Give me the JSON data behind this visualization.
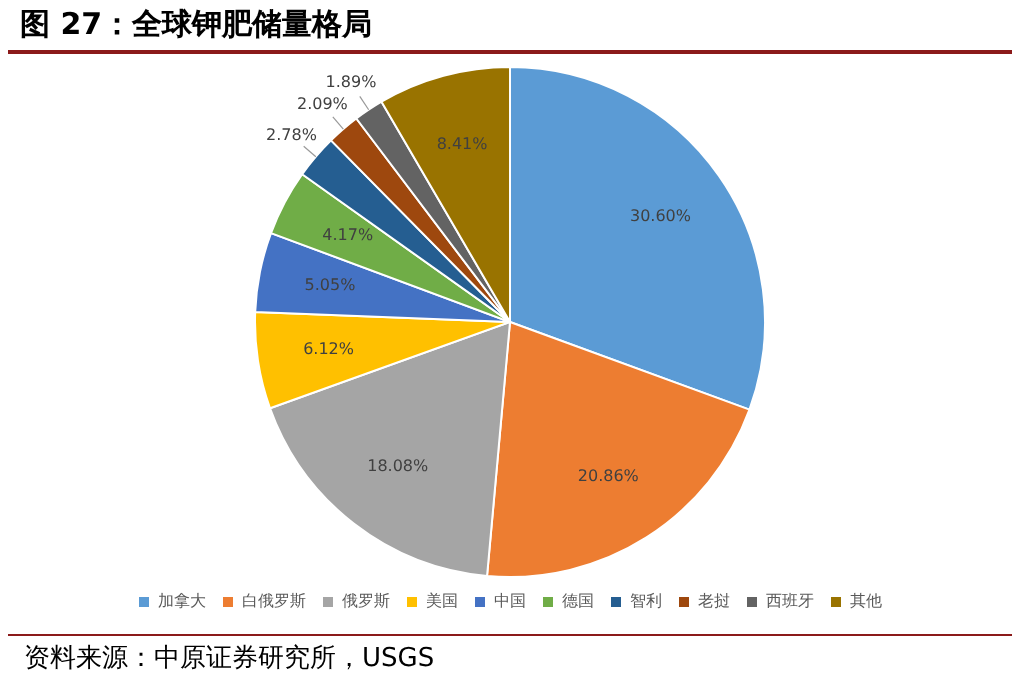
{
  "chart_data": {
    "type": "pie",
    "title": "图 27：全球钾肥储量格局",
    "categories": [
      "加拿大",
      "白俄罗斯",
      "俄罗斯",
      "美国",
      "中国",
      "德国",
      "智利",
      "老挝",
      "西班牙",
      "其他"
    ],
    "values": [
      30.6,
      20.86,
      18.08,
      6.12,
      5.05,
      4.17,
      2.78,
      2.09,
      1.89,
      8.41
    ],
    "value_labels": [
      "30.60%",
      "20.86%",
      "18.08%",
      "6.12%",
      "5.05%",
      "4.17%",
      "2.78%",
      "2.09%",
      "1.89%",
      "8.41%"
    ],
    "colors": [
      "#5b9bd5",
      "#ed7d31",
      "#a5a5a5",
      "#ffc000",
      "#4472c4",
      "#70ad47",
      "#255e91",
      "#9e480e",
      "#636363",
      "#997300"
    ],
    "legend": "bottom",
    "annotations": [
      "资料来源：中原证券研究所，USGS"
    ]
  }
}
